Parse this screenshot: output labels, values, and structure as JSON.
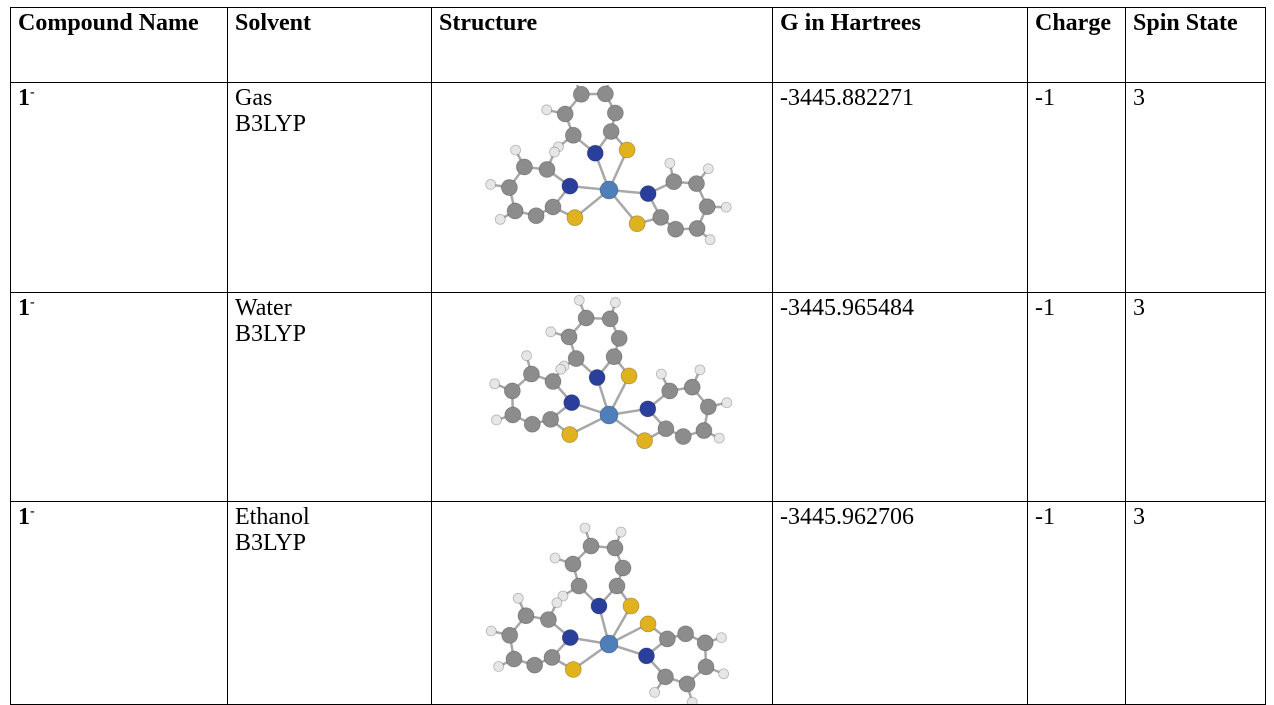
{
  "headers": {
    "compound": "Compound Name",
    "solvent": "Solvent",
    "structure": "Structure",
    "energy": "G in Hartrees",
    "charge": "Charge",
    "spin": "Spin State"
  },
  "rows": [
    {
      "compound": "1",
      "compound_sup": "-",
      "solvent": "Gas",
      "method": "B3LYP",
      "energy": "-3445.882271",
      "charge": "-1",
      "spin": "3"
    },
    {
      "compound": "1",
      "compound_sup": "-",
      "solvent": "Water",
      "method": "B3LYP",
      "energy": "-3445.965484",
      "charge": "-1",
      "spin": "3"
    },
    {
      "compound": "1",
      "compound_sup": "-",
      "solvent": "Ethanol",
      "method": "B3LYP",
      "energy": "-3445.962706",
      "charge": "-1",
      "spin": "3"
    }
  ],
  "colors": {
    "carbon": "#8c8c8c",
    "nitrogen": "#2a3f9c",
    "sulfur": "#e0b21e",
    "metal": "#4f7fb8",
    "hydrogen": "#e6e6e6",
    "bond": "#a8a8a8"
  }
}
